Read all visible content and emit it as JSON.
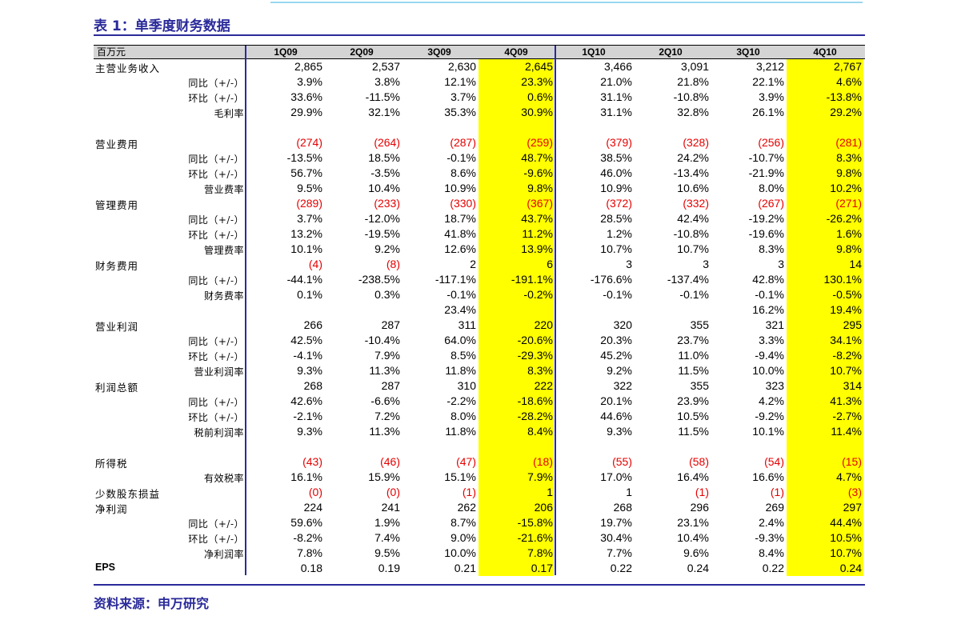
{
  "title": "表 1：单季度财务数据",
  "unit": "百万元",
  "columns": [
    "1Q09",
    "2Q09",
    "3Q09",
    "4Q09",
    "1Q10",
    "2Q10",
    "3Q10",
    "4Q10"
  ],
  "highlight_color": "#ffff00",
  "accent_color": "#2a2a9a",
  "negative_color": "#e60000",
  "rows": [
    {
      "label": "主营业务收入",
      "sub": "",
      "vals": [
        "2,865",
        "2,537",
        "2,630",
        "2,645",
        "3,466",
        "3,091",
        "3,212",
        "2,767"
      ]
    },
    {
      "label": "",
      "sub": "同比（+/-）",
      "vals": [
        "3.9%",
        "3.8%",
        "12.1%",
        "23.3%",
        "21.0%",
        "21.8%",
        "22.1%",
        "4.6%"
      ]
    },
    {
      "label": "",
      "sub": "环比（+/-）",
      "vals": [
        "33.6%",
        "-11.5%",
        "3.7%",
        "0.6%",
        "31.1%",
        "-10.8%",
        "3.9%",
        "-13.8%"
      ]
    },
    {
      "label": "",
      "sub": "毛利率",
      "vals": [
        "29.9%",
        "32.1%",
        "35.3%",
        "30.9%",
        "31.1%",
        "32.8%",
        "26.1%",
        "29.2%"
      ]
    },
    {
      "label": "",
      "sub": "",
      "vals": [
        "",
        "",
        "",
        "",
        "",
        "",
        "",
        ""
      ]
    },
    {
      "label": "营业费用",
      "sub": "",
      "vals": [
        "(274)",
        "(264)",
        "(287)",
        "(259)",
        "(379)",
        "(328)",
        "(256)",
        "(281)"
      ]
    },
    {
      "label": "",
      "sub": "同比（+/-）",
      "vals": [
        "-13.5%",
        "18.5%",
        "-0.1%",
        "48.7%",
        "38.5%",
        "24.2%",
        "-10.7%",
        "8.3%"
      ]
    },
    {
      "label": "",
      "sub": "环比（+/-）",
      "vals": [
        "56.7%",
        "-3.5%",
        "8.6%",
        "-9.6%",
        "46.0%",
        "-13.4%",
        "-21.9%",
        "9.8%"
      ]
    },
    {
      "label": "",
      "sub": "营业费率",
      "vals": [
        "9.5%",
        "10.4%",
        "10.9%",
        "9.8%",
        "10.9%",
        "10.6%",
        "8.0%",
        "10.2%"
      ]
    },
    {
      "label": "管理费用",
      "sub": "",
      "vals": [
        "(289)",
        "(233)",
        "(330)",
        "(367)",
        "(372)",
        "(332)",
        "(267)",
        "(271)"
      ]
    },
    {
      "label": "",
      "sub": "同比（+/-）",
      "vals": [
        "3.7%",
        "-12.0%",
        "18.7%",
        "43.7%",
        "28.5%",
        "42.4%",
        "-19.2%",
        "-26.2%"
      ]
    },
    {
      "label": "",
      "sub": "环比（+/-）",
      "vals": [
        "13.2%",
        "-19.5%",
        "41.8%",
        "11.2%",
        "1.2%",
        "-10.8%",
        "-19.6%",
        "1.6%"
      ]
    },
    {
      "label": "",
      "sub": "管理费率",
      "vals": [
        "10.1%",
        "9.2%",
        "12.6%",
        "13.9%",
        "10.7%",
        "10.7%",
        "8.3%",
        "9.8%"
      ]
    },
    {
      "label": "财务费用",
      "sub": "",
      "vals": [
        "(4)",
        "(8)",
        "2",
        "6",
        "3",
        "3",
        "3",
        "14"
      ]
    },
    {
      "label": "",
      "sub": "同比（+/-）",
      "vals": [
        "-44.1%",
        "-238.5%",
        "-117.1%",
        "-191.1%",
        "-176.6%",
        "-137.4%",
        "42.8%",
        "130.1%"
      ]
    },
    {
      "label": "",
      "sub": "财务费率",
      "vals": [
        "0.1%",
        "0.3%",
        "-0.1%",
        "-0.2%",
        "-0.1%",
        "-0.1%",
        "-0.1%",
        "-0.5%"
      ]
    },
    {
      "label": "",
      "sub": "",
      "vals": [
        "",
        "",
        "23.4%",
        "",
        "",
        "",
        "16.2%",
        "19.4%"
      ]
    },
    {
      "label": "营业利润",
      "sub": "",
      "vals": [
        "266",
        "287",
        "311",
        "220",
        "320",
        "355",
        "321",
        "295"
      ]
    },
    {
      "label": "",
      "sub": "同比（+/-）",
      "vals": [
        "42.5%",
        "-10.4%",
        "64.0%",
        "-20.6%",
        "20.3%",
        "23.7%",
        "3.3%",
        "34.1%"
      ]
    },
    {
      "label": "",
      "sub": "环比（+/-）",
      "vals": [
        "-4.1%",
        "7.9%",
        "8.5%",
        "-29.3%",
        "45.2%",
        "11.0%",
        "-9.4%",
        "-8.2%"
      ]
    },
    {
      "label": "",
      "sub": "营业利润率",
      "vals": [
        "9.3%",
        "11.3%",
        "11.8%",
        "8.3%",
        "9.2%",
        "11.5%",
        "10.0%",
        "10.7%"
      ]
    },
    {
      "label": "利润总额",
      "sub": "",
      "vals": [
        "268",
        "287",
        "310",
        "222",
        "322",
        "355",
        "323",
        "314"
      ]
    },
    {
      "label": "",
      "sub": "同比（+/-）",
      "vals": [
        "42.6%",
        "-6.6%",
        "-2.2%",
        "-18.6%",
        "20.1%",
        "23.9%",
        "4.2%",
        "41.3%"
      ]
    },
    {
      "label": "",
      "sub": "环比（+/-）",
      "vals": [
        "-2.1%",
        "7.2%",
        "8.0%",
        "-28.2%",
        "44.6%",
        "10.5%",
        "-9.2%",
        "-2.7%"
      ]
    },
    {
      "label": "",
      "sub": "税前利润率",
      "vals": [
        "9.3%",
        "11.3%",
        "11.8%",
        "8.4%",
        "9.3%",
        "11.5%",
        "10.1%",
        "11.4%"
      ]
    },
    {
      "label": "",
      "sub": "",
      "vals": [
        "",
        "",
        "",
        "",
        "",
        "",
        "",
        ""
      ]
    },
    {
      "label": "所得税",
      "sub": "",
      "vals": [
        "(43)",
        "(46)",
        "(47)",
        "(18)",
        "(55)",
        "(58)",
        "(54)",
        "(15)"
      ]
    },
    {
      "label": "",
      "sub": "有效税率",
      "vals": [
        "16.1%",
        "15.9%",
        "15.1%",
        "7.9%",
        "17.0%",
        "16.4%",
        "16.6%",
        "4.7%"
      ]
    },
    {
      "label": "少数股东损益",
      "sub": "",
      "vals": [
        "(0)",
        "(0)",
        "(1)",
        "1",
        "1",
        "(1)",
        "(1)",
        "(3)"
      ]
    },
    {
      "label": "净利润",
      "sub": "",
      "vals": [
        "224",
        "241",
        "262",
        "206",
        "268",
        "296",
        "269",
        "297"
      ]
    },
    {
      "label": "",
      "sub": "同比（+/-）",
      "vals": [
        "59.6%",
        "1.9%",
        "8.7%",
        "-15.8%",
        "19.7%",
        "23.1%",
        "2.4%",
        "44.4%"
      ]
    },
    {
      "label": "",
      "sub": "环比（+/-）",
      "vals": [
        "-8.2%",
        "7.4%",
        "9.0%",
        "-21.6%",
        "30.4%",
        "10.4%",
        "-9.3%",
        "10.5%"
      ]
    },
    {
      "label": "",
      "sub": "净利润率",
      "vals": [
        "7.8%",
        "9.5%",
        "10.0%",
        "7.8%",
        "7.7%",
        "9.6%",
        "8.4%",
        "10.7%"
      ]
    },
    {
      "label": "EPS",
      "sub": "",
      "vals": [
        "0.18",
        "0.19",
        "0.21",
        "0.17",
        "0.22",
        "0.24",
        "0.22",
        "0.24"
      ]
    }
  ],
  "source": "资料来源：申万研究"
}
